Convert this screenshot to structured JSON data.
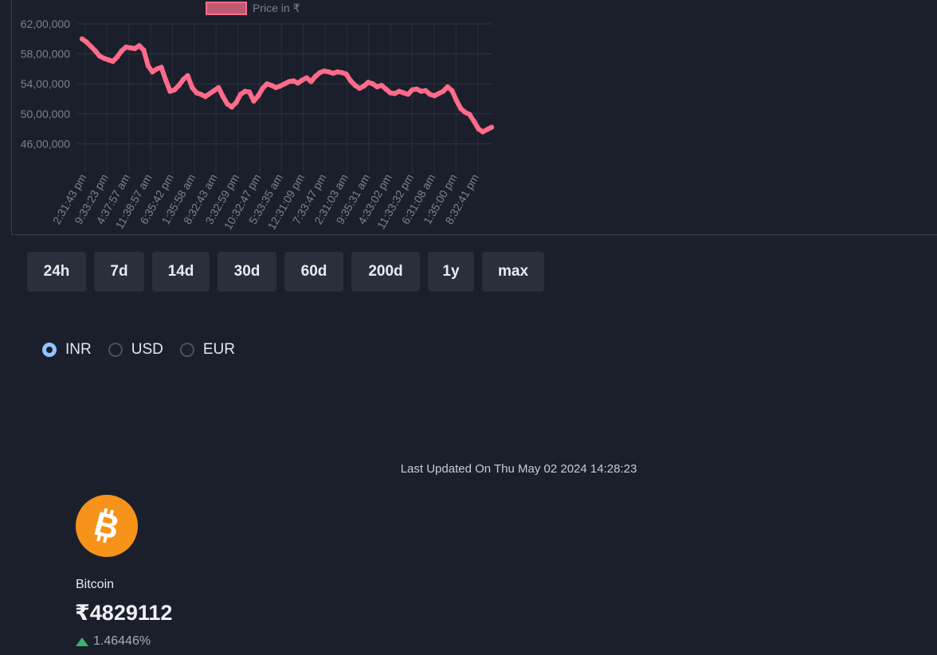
{
  "chart_data": {
    "type": "line",
    "legend": {
      "label": "Price in ₹",
      "placement": "top"
    },
    "series_color": "#ff6b8b",
    "ylim": [
      42000000,
      62000000
    ],
    "y_ticks": [
      "62,00,000",
      "58,00,000",
      "54,00,000",
      "50,00,000",
      "46,00,000"
    ],
    "y_tick_values": [
      6200000,
      5800000,
      5400000,
      5000000,
      4600000
    ],
    "x_ticks": [
      "2:31:43 pm",
      "9:33:23 pm",
      "4:37:57 am",
      "11:38:57 am",
      "6:35:42 pm",
      "1:35:58 am",
      "8:32:43 am",
      "3:32:59 pm",
      "10:32:47 pm",
      "5:33:35 am",
      "12:31:09 pm",
      "7:33:47 pm",
      "2:31:03 am",
      "9:35:31 am",
      "4:33:02 pm",
      "11:33:32 pm",
      "6:31:08 am",
      "1:35:00 pm",
      "8:32:41 pm"
    ],
    "series": [
      {
        "values": [
          6000000,
          5960000,
          5900000,
          5840000,
          5770000,
          5740000,
          5720000,
          5700000,
          5760000,
          5840000,
          5890000,
          5880000,
          5870000,
          5910000,
          5850000,
          5640000,
          5560000,
          5600000,
          5620000,
          5450000,
          5300000,
          5320000,
          5380000,
          5460000,
          5510000,
          5350000,
          5280000,
          5260000,
          5230000,
          5270000,
          5310000,
          5350000,
          5230000,
          5130000,
          5090000,
          5150000,
          5260000,
          5300000,
          5290000,
          5170000,
          5240000,
          5340000,
          5400000,
          5380000,
          5350000,
          5370000,
          5400000,
          5430000,
          5440000,
          5410000,
          5450000,
          5480000,
          5430000,
          5500000,
          5550000,
          5570000,
          5560000,
          5540000,
          5560000,
          5550000,
          5530000,
          5440000,
          5380000,
          5340000,
          5370000,
          5420000,
          5400000,
          5360000,
          5380000,
          5330000,
          5280000,
          5270000,
          5300000,
          5280000,
          5260000,
          5320000,
          5330000,
          5300000,
          5310000,
          5260000,
          5240000,
          5270000,
          5300000,
          5360000,
          5310000,
          5180000,
          5070000,
          5020000,
          4990000,
          4900000,
          4800000,
          4760000,
          4790000,
          4820000
        ]
      }
    ]
  },
  "range_buttons": [
    "24h",
    "7d",
    "14d",
    "30d",
    "60d",
    "200d",
    "1y",
    "max"
  ],
  "currency": {
    "options": [
      "INR",
      "USD",
      "EUR"
    ],
    "selected": "INR"
  },
  "last_updated": "Last Updated On Thu May 02 2024 14:28:23",
  "coin": {
    "icon": "bitcoin-icon",
    "logo_color": "#f7931a",
    "name": "Bitcoin",
    "price": "₹4829112",
    "change": "1.46446%",
    "change_direction": "up",
    "change_color": "#3cb371"
  }
}
